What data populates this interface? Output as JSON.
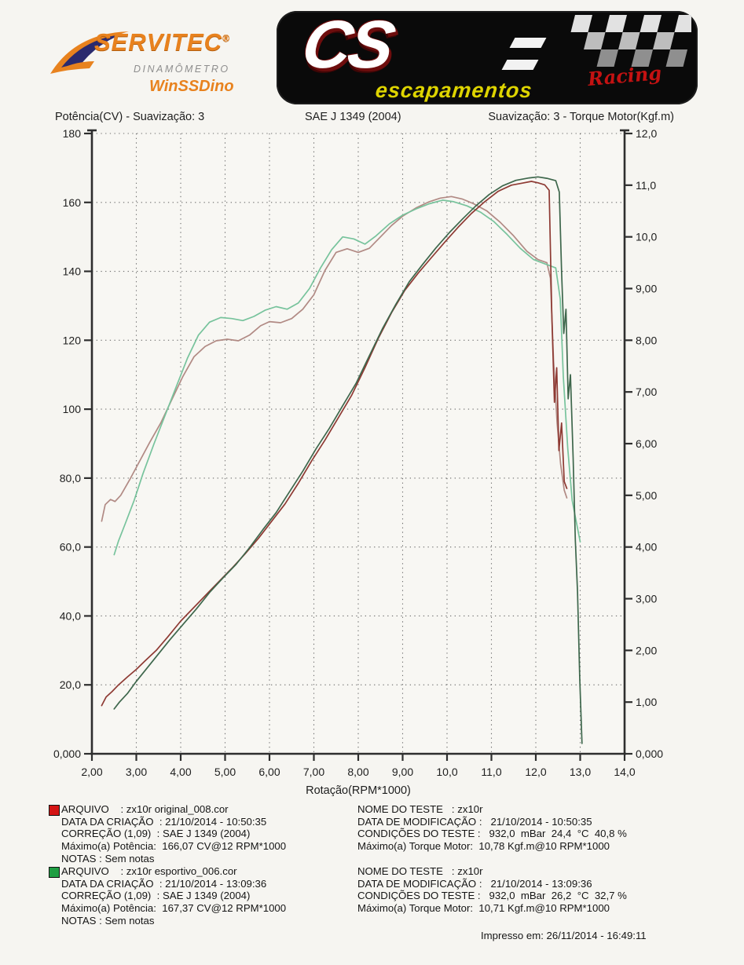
{
  "brand": {
    "servitec": {
      "name": "SERVITEC",
      "registered": "®",
      "subtitle": "DINAMÔMETRO",
      "software": "WinSSDino"
    },
    "cs": {
      "initials": "CS",
      "racing": "Racing",
      "tagline": "escapamentos"
    }
  },
  "colors": {
    "power_red": "#8e3a33",
    "power_green": "#3e674c",
    "torque_red": "#b18a84",
    "torque_green": "#77c39c",
    "legend_red": "#d41414",
    "legend_green": "#1f9e42",
    "axis": "#2e2e2e",
    "grid": "#4a4a4a",
    "text": "#1e1e1e"
  },
  "chart_data": {
    "type": "line",
    "title_left": "Potência(CV) - Suavização: 3",
    "title_center": "SAE J 1349 (2004)",
    "title_right": "Suavização: 3 - Torque Motor(Kgf.m)",
    "xlabel": "Rotação(RPM*1000)",
    "x_range": [
      2,
      14
    ],
    "y_left_label": "Potência(CV)",
    "y_left_range": [
      0,
      180
    ],
    "y_right_label": "Torque Motor(Kgf.m)",
    "y_right_range": [
      0,
      12
    ],
    "grid": "dotted",
    "x_ticks": [
      {
        "v": 2,
        "l": "2,00"
      },
      {
        "v": 3,
        "l": "3,00"
      },
      {
        "v": 4,
        "l": "4,00"
      },
      {
        "v": 5,
        "l": "5,00"
      },
      {
        "v": 6,
        "l": "6,00"
      },
      {
        "v": 7,
        "l": "7,00"
      },
      {
        "v": 8,
        "l": "8,00"
      },
      {
        "v": 9,
        "l": "9,00"
      },
      {
        "v": 10,
        "l": "10,0"
      },
      {
        "v": 11,
        "l": "11,0"
      },
      {
        "v": 12,
        "l": "12,0"
      },
      {
        "v": 13,
        "l": "13,0"
      },
      {
        "v": 14,
        "l": "14,0"
      }
    ],
    "y_left_ticks": [
      {
        "v": 180,
        "l": "180"
      },
      {
        "v": 160,
        "l": "160"
      },
      {
        "v": 140,
        "l": "140"
      },
      {
        "v": 120,
        "l": "120"
      },
      {
        "v": 100,
        "l": "100"
      },
      {
        "v": 80,
        "l": "80,0"
      },
      {
        "v": 60,
        "l": "60,0"
      },
      {
        "v": 40,
        "l": "40,0"
      },
      {
        "v": 20,
        "l": "20,0"
      },
      {
        "v": 0,
        "l": "0,000"
      }
    ],
    "y_right_ticks": [
      {
        "v": 12,
        "l": "12,0"
      },
      {
        "v": 11,
        "l": "11,0"
      },
      {
        "v": 10,
        "l": "10,0"
      },
      {
        "v": 9,
        "l": "9,00"
      },
      {
        "v": 8,
        "l": "8,00"
      },
      {
        "v": 7,
        "l": "7,00"
      },
      {
        "v": 6,
        "l": "6,00"
      },
      {
        "v": 5,
        "l": "5,00"
      },
      {
        "v": 4,
        "l": "4,00"
      },
      {
        "v": 3,
        "l": "3,00"
      },
      {
        "v": 2,
        "l": "2,00"
      },
      {
        "v": 1,
        "l": "1,00"
      },
      {
        "v": 0,
        "l": "0,000"
      }
    ],
    "series": [
      {
        "name": "Torque Motor - zx10r original_008.cor",
        "axis": "right",
        "color": "torque_red",
        "points": [
          [
            2.22,
            4.5
          ],
          [
            2.3,
            4.82
          ],
          [
            2.42,
            4.92
          ],
          [
            2.52,
            4.88
          ],
          [
            2.65,
            5.0
          ],
          [
            2.85,
            5.3
          ],
          [
            3.05,
            5.62
          ],
          [
            3.3,
            6.02
          ],
          [
            3.55,
            6.4
          ],
          [
            3.8,
            6.85
          ],
          [
            4.05,
            7.3
          ],
          [
            4.3,
            7.68
          ],
          [
            4.55,
            7.88
          ],
          [
            4.8,
            7.99
          ],
          [
            5.05,
            8.02
          ],
          [
            5.3,
            7.99
          ],
          [
            5.55,
            8.1
          ],
          [
            5.8,
            8.28
          ],
          [
            6.0,
            8.36
          ],
          [
            6.25,
            8.34
          ],
          [
            6.5,
            8.42
          ],
          [
            6.75,
            8.6
          ],
          [
            7.0,
            8.88
          ],
          [
            7.25,
            9.35
          ],
          [
            7.5,
            9.7
          ],
          [
            7.75,
            9.77
          ],
          [
            8.0,
            9.7
          ],
          [
            8.25,
            9.78
          ],
          [
            8.5,
            10.0
          ],
          [
            8.75,
            10.22
          ],
          [
            9.0,
            10.4
          ],
          [
            9.3,
            10.56
          ],
          [
            9.6,
            10.68
          ],
          [
            9.85,
            10.75
          ],
          [
            10.1,
            10.78
          ],
          [
            10.35,
            10.73
          ],
          [
            10.6,
            10.64
          ],
          [
            10.9,
            10.5
          ],
          [
            11.2,
            10.28
          ],
          [
            11.5,
            10.02
          ],
          [
            11.8,
            9.72
          ],
          [
            12.05,
            9.56
          ],
          [
            12.25,
            9.5
          ],
          [
            12.33,
            9.2
          ],
          [
            12.4,
            7.6
          ],
          [
            12.48,
            6.4
          ],
          [
            12.56,
            5.6
          ],
          [
            12.64,
            5.1
          ],
          [
            12.7,
            4.95
          ]
        ]
      },
      {
        "name": "Torque Motor - zx10r esportivo_006.cor",
        "axis": "right",
        "color": "torque_green",
        "points": [
          [
            2.5,
            3.85
          ],
          [
            2.6,
            4.12
          ],
          [
            2.75,
            4.45
          ],
          [
            2.95,
            4.9
          ],
          [
            3.15,
            5.42
          ],
          [
            3.4,
            6.0
          ],
          [
            3.65,
            6.55
          ],
          [
            3.9,
            7.1
          ],
          [
            4.15,
            7.65
          ],
          [
            4.4,
            8.1
          ],
          [
            4.65,
            8.35
          ],
          [
            4.9,
            8.44
          ],
          [
            5.15,
            8.42
          ],
          [
            5.4,
            8.38
          ],
          [
            5.65,
            8.46
          ],
          [
            5.9,
            8.58
          ],
          [
            6.15,
            8.65
          ],
          [
            6.4,
            8.6
          ],
          [
            6.65,
            8.72
          ],
          [
            6.9,
            9.0
          ],
          [
            7.15,
            9.4
          ],
          [
            7.4,
            9.75
          ],
          [
            7.65,
            10.0
          ],
          [
            7.9,
            9.96
          ],
          [
            8.15,
            9.86
          ],
          [
            8.4,
            10.02
          ],
          [
            8.7,
            10.25
          ],
          [
            9.0,
            10.42
          ],
          [
            9.3,
            10.54
          ],
          [
            9.6,
            10.64
          ],
          [
            9.9,
            10.71
          ],
          [
            10.15,
            10.68
          ],
          [
            10.45,
            10.6
          ],
          [
            10.75,
            10.48
          ],
          [
            11.05,
            10.3
          ],
          [
            11.35,
            10.05
          ],
          [
            11.65,
            9.78
          ],
          [
            11.95,
            9.56
          ],
          [
            12.2,
            9.48
          ],
          [
            12.45,
            9.4
          ],
          [
            12.55,
            8.8
          ],
          [
            12.62,
            7.3
          ],
          [
            12.72,
            5.9
          ],
          [
            12.82,
            4.9
          ],
          [
            12.92,
            4.45
          ],
          [
            13.0,
            4.1
          ]
        ]
      },
      {
        "name": "Potência - zx10r original_008.cor",
        "axis": "left",
        "color": "power_red",
        "points": [
          [
            2.22,
            14
          ],
          [
            2.32,
            16.5
          ],
          [
            2.45,
            18
          ],
          [
            2.6,
            20
          ],
          [
            2.8,
            22.3
          ],
          [
            3.0,
            24.5
          ],
          [
            3.2,
            27
          ],
          [
            3.45,
            30
          ],
          [
            3.7,
            33.8
          ],
          [
            4.0,
            38.5
          ],
          [
            4.3,
            42.5
          ],
          [
            4.6,
            46.5
          ],
          [
            4.9,
            50.5
          ],
          [
            5.15,
            53.8
          ],
          [
            5.45,
            58
          ],
          [
            5.75,
            62.5
          ],
          [
            6.05,
            67.5
          ],
          [
            6.35,
            72.5
          ],
          [
            6.65,
            78.5
          ],
          [
            6.95,
            85
          ],
          [
            7.25,
            91
          ],
          [
            7.55,
            97.5
          ],
          [
            7.85,
            104
          ],
          [
            8.15,
            112
          ],
          [
            8.45,
            120.5
          ],
          [
            8.75,
            128
          ],
          [
            9.05,
            134.5
          ],
          [
            9.35,
            139.5
          ],
          [
            9.65,
            144
          ],
          [
            9.95,
            148.5
          ],
          [
            10.25,
            152.8
          ],
          [
            10.55,
            156.8
          ],
          [
            10.85,
            160.2
          ],
          [
            11.15,
            163.2
          ],
          [
            11.45,
            165
          ],
          [
            11.7,
            165.6
          ],
          [
            11.9,
            166.1
          ],
          [
            12.05,
            165.7
          ],
          [
            12.2,
            165.1
          ],
          [
            12.3,
            163.5
          ],
          [
            12.36,
            128
          ],
          [
            12.42,
            102
          ],
          [
            12.47,
            112
          ],
          [
            12.52,
            88
          ],
          [
            12.58,
            96
          ],
          [
            12.64,
            79
          ],
          [
            12.7,
            77
          ]
        ]
      },
      {
        "name": "Potência - zx10r esportivo_006.cor",
        "axis": "left",
        "color": "power_green",
        "points": [
          [
            2.5,
            13
          ],
          [
            2.62,
            15
          ],
          [
            2.8,
            17.5
          ],
          [
            3.0,
            21
          ],
          [
            3.25,
            25
          ],
          [
            3.5,
            29
          ],
          [
            3.75,
            33
          ],
          [
            4.05,
            37.5
          ],
          [
            4.35,
            42
          ],
          [
            4.65,
            46.8
          ],
          [
            4.95,
            51
          ],
          [
            5.25,
            55
          ],
          [
            5.55,
            59.8
          ],
          [
            5.85,
            65
          ],
          [
            6.15,
            70
          ],
          [
            6.45,
            76
          ],
          [
            6.75,
            82
          ],
          [
            7.05,
            88.5
          ],
          [
            7.35,
            94.5
          ],
          [
            7.65,
            101
          ],
          [
            7.95,
            107.5
          ],
          [
            8.25,
            115.5
          ],
          [
            8.55,
            123.5
          ],
          [
            8.85,
            130.5
          ],
          [
            9.15,
            137
          ],
          [
            9.45,
            142
          ],
          [
            9.75,
            146.8
          ],
          [
            10.05,
            151.2
          ],
          [
            10.35,
            155.2
          ],
          [
            10.65,
            159
          ],
          [
            10.95,
            162.3
          ],
          [
            11.25,
            164.8
          ],
          [
            11.55,
            166.4
          ],
          [
            11.85,
            167.1
          ],
          [
            12.05,
            167.4
          ],
          [
            12.25,
            167
          ],
          [
            12.45,
            166.3
          ],
          [
            12.53,
            163
          ],
          [
            12.58,
            140
          ],
          [
            12.63,
            122
          ],
          [
            12.68,
            129
          ],
          [
            12.73,
            103
          ],
          [
            12.78,
            110
          ],
          [
            12.84,
            86
          ],
          [
            12.89,
            62
          ],
          [
            12.94,
            47
          ],
          [
            12.99,
            22
          ],
          [
            13.04,
            3
          ]
        ]
      }
    ]
  },
  "results": {
    "entries": [
      {
        "swatch": "legend_red",
        "left": [
          "ARQUIVO    : zx10r original_008.cor",
          "DATA DA CRIAÇÃO  : 21/10/2014 - 10:50:35",
          "CORREÇÃO (1,09)  : SAE J 1349 (2004)",
          "Máximo(a) Potência:  166,07 CV@12 RPM*1000",
          "NOTAS : Sem notas"
        ],
        "right": [
          "NOME DO TESTE   : zx10r",
          "DATA DE MODIFICAÇÃO :   21/10/2014 - 10:50:35",
          "CONDIÇÕES DO TESTE :   932,0  mBar  24,4  °C  40,8 %",
          "Máximo(a) Torque Motor:  10,78 Kgf.m@10 RPM*1000"
        ]
      },
      {
        "swatch": "legend_green",
        "left": [
          "ARQUIVO    : zx10r esportivo_006.cor",
          "DATA DA CRIAÇÃO  : 21/10/2014 - 13:09:36",
          "CORREÇÃO (1,09)  : SAE J 1349 (2004)",
          "Máximo(a) Potência:  167,37 CV@12 RPM*1000",
          "NOTAS : Sem notas"
        ],
        "right": [
          "NOME DO TESTE   : zx10r",
          "DATA DE MODIFICAÇÃO :   21/10/2014 - 13:09:36",
          "CONDIÇÕES DO TESTE :   932,0  mBar  26,2  °C  32,7 %",
          "Máximo(a) Torque Motor:  10,71 Kgf.m@10 RPM*1000"
        ]
      }
    ],
    "printed": "Impresso em: 26/11/2014 - 16:49:11"
  }
}
